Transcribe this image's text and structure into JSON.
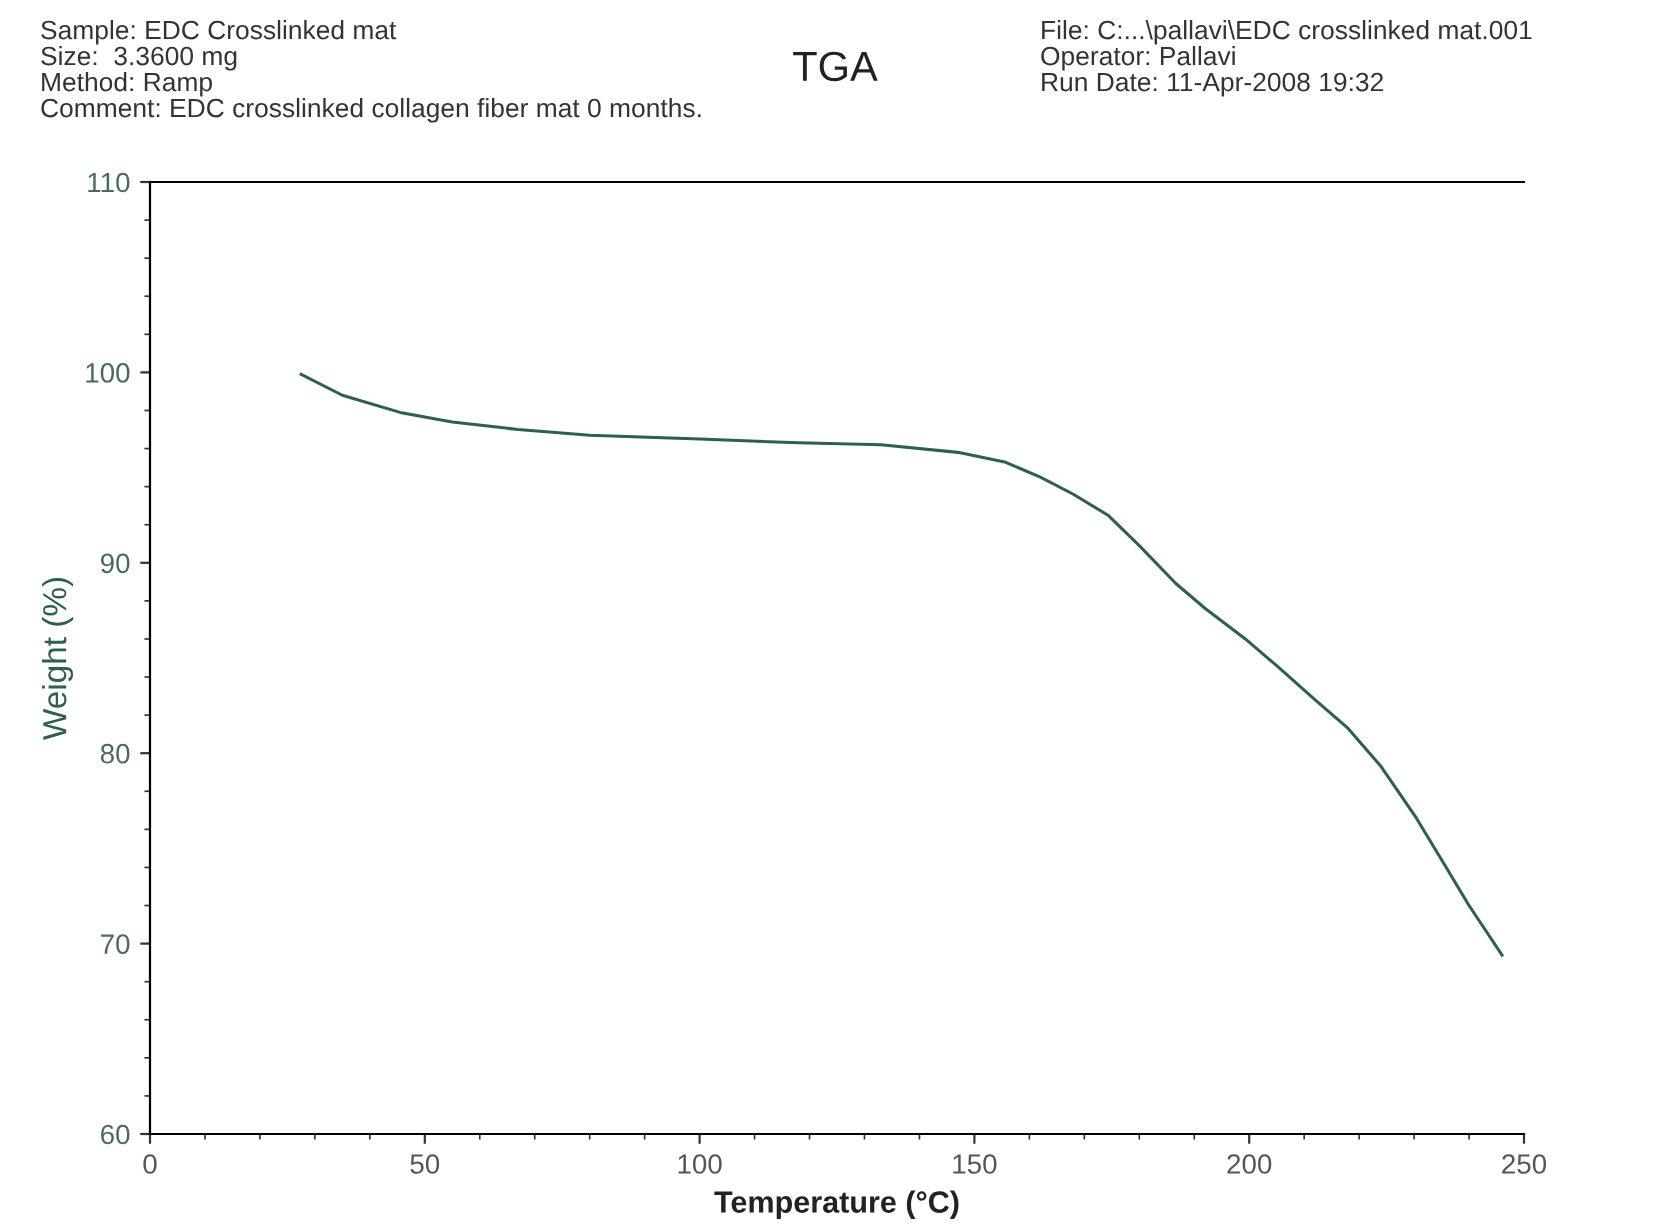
{
  "chart_data": {
    "type": "line",
    "title": "TGA",
    "xlabel": "Temperature (°C)",
    "ylabel": "Weight (%)",
    "annotations": [
      "Sample: EDC Crosslinked mat",
      "Size:  3.3600 mg",
      "Method: Ramp",
      "Comment: EDC crosslinked collagen fiber mat 0 months.",
      "File: C:...\\pallavi\\EDC crosslinked mat.001",
      "Operator: Pallavi",
      "Run Date: 11-Apr-2008 19:32"
    ],
    "series": [
      {
        "color": "#2f5f4f",
        "x": [
          27.5,
          35,
          45.5,
          55,
          67,
          80,
          100,
          118,
          133,
          147,
          155.5,
          162,
          168,
          174.3,
          180,
          186.7,
          192,
          199.3,
          205,
          212,
          218,
          224,
          230.4,
          235,
          240,
          243,
          246
        ],
        "values": [
          99.9,
          98.8,
          97.9,
          97.4,
          97.0,
          96.7,
          96.5,
          96.3,
          96.2,
          95.8,
          95.3,
          94.5,
          93.6,
          92.5,
          90.9,
          88.9,
          87.6,
          86.0,
          84.6,
          82.8,
          81.3,
          79.3,
          76.6,
          74.4,
          72.0,
          70.7,
          69.4
        ]
      }
    ],
    "xlim": [
      0,
      250
    ],
    "xticks": [
      0,
      50,
      100,
      150,
      200,
      250
    ],
    "ylim": [
      60,
      110
    ],
    "yticks": [
      60,
      70,
      80,
      90,
      100,
      110
    ],
    "grid": false,
    "line_style": "solid",
    "marker": "none"
  }
}
